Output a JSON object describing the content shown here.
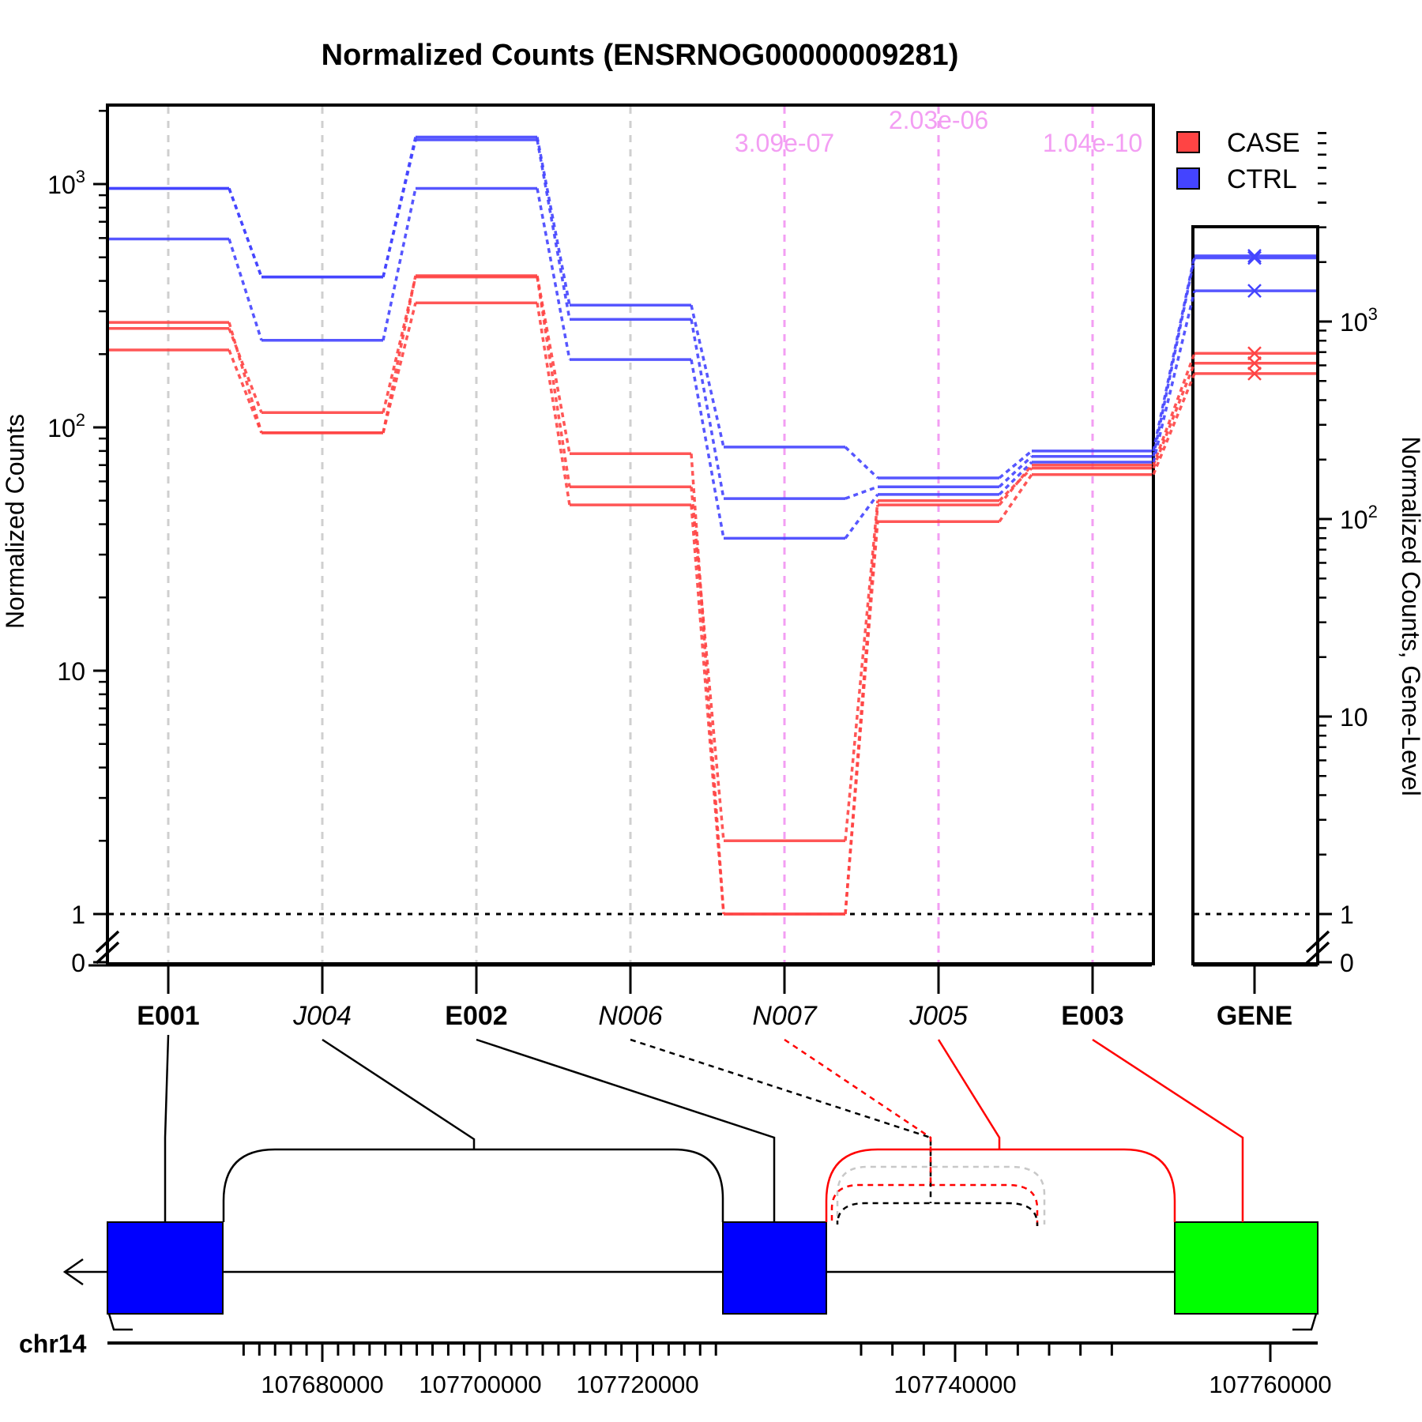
{
  "chart_data": {
    "type": "line",
    "title": "Normalized Counts (ENSRNOG00000009281)",
    "ylabel": "Normalized Counts",
    "ylabel_right": "Normalized Counts, Gene-Level",
    "y_scale": "log",
    "y_ticks": [
      {
        "value": 0,
        "base": "0",
        "exp": ""
      },
      {
        "value": 1,
        "base": "1",
        "exp": ""
      },
      {
        "value": 10,
        "base": "10",
        "exp": ""
      },
      {
        "value": 100,
        "base": "10",
        "exp": "2"
      },
      {
        "value": 1000,
        "base": "10",
        "exp": "3"
      }
    ],
    "features": [
      {
        "id": "E001",
        "kind": "exon"
      },
      {
        "id": "J004",
        "kind": "junction"
      },
      {
        "id": "E002",
        "kind": "exon"
      },
      {
        "id": "N006",
        "kind": "junction"
      },
      {
        "id": "N007",
        "kind": "junction"
      },
      {
        "id": "J005",
        "kind": "junction"
      },
      {
        "id": "E003",
        "kind": "exon"
      }
    ],
    "gene_label": "GENE",
    "pvalues": [
      {
        "feature": "N007",
        "text": "3.09e-07",
        "row": 1
      },
      {
        "feature": "J005",
        "text": "2.03e-06",
        "row": 0
      },
      {
        "feature": "E003",
        "text": "1.04e-10",
        "row": 1
      }
    ],
    "legend": [
      {
        "name": "CASE",
        "color": "#ff4444"
      },
      {
        "name": "CTRL",
        "color": "#4444ff"
      }
    ],
    "series": [
      {
        "group": "CASE",
        "values": [
          270,
          95,
          420,
          78,
          1,
          48,
          70
        ]
      },
      {
        "group": "CASE",
        "values": [
          255,
          115,
          415,
          57,
          2,
          50,
          68
        ]
      },
      {
        "group": "CASE",
        "values": [
          208,
          95,
          325,
          48,
          1,
          41,
          64
        ]
      },
      {
        "group": "CTRL",
        "values": [
          960,
          415,
          1560,
          318,
          83,
          62,
          80
        ]
      },
      {
        "group": "CTRL",
        "values": [
          960,
          415,
          1520,
          278,
          51,
          57,
          76
        ]
      },
      {
        "group": "CTRL",
        "values": [
          595,
          228,
          960,
          190,
          35,
          53,
          72
        ]
      }
    ],
    "gene_series": [
      {
        "group": "CASE",
        "value": 690
      },
      {
        "group": "CASE",
        "value": 615
      },
      {
        "group": "CASE",
        "value": 545
      },
      {
        "group": "CTRL",
        "value": 2150
      },
      {
        "group": "CTRL",
        "value": 2100
      },
      {
        "group": "CTRL",
        "value": 1430
      }
    ],
    "chromosome": "chr14",
    "genome_ticks": [
      107680000,
      107700000,
      107720000,
      107740000,
      107760000
    ]
  },
  "colors": {
    "case": "#ff4444",
    "ctrl": "#4444ff",
    "exon_tested": "#0000ff",
    "exon_sig": "#00ff00",
    "sig_junction": "#ff0000",
    "pvalue": "#f39ef3"
  }
}
